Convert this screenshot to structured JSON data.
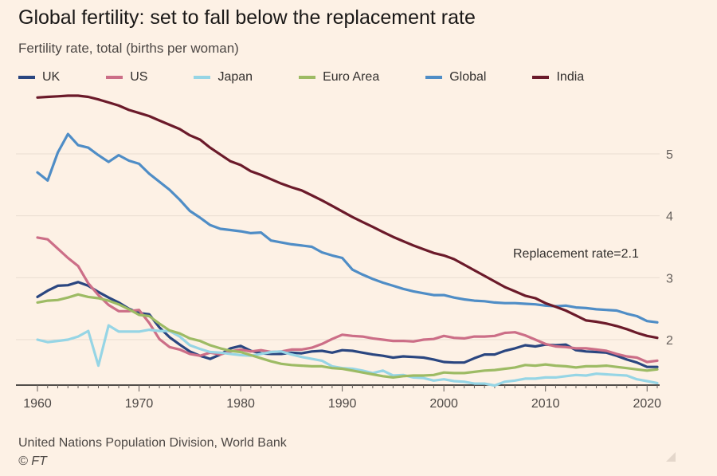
{
  "header": {
    "title": "Global fertility: set to fall below the replacement rate",
    "subtitle": "Fertility rate, total (births per woman)"
  },
  "footer": {
    "source": "United Nations Population Division, World Bank",
    "copyright": "© FT"
  },
  "chart_data": {
    "type": "line",
    "title": "Global fertility: set to fall below the replacement rate",
    "ylabel": "Fertility rate, total (births per woman)",
    "xlabel": "",
    "xlim": [
      1960,
      2021
    ],
    "ylim": [
      1.25,
      5.9
    ],
    "x_ticks": [
      1960,
      1970,
      1980,
      1990,
      2000,
      2010,
      2020
    ],
    "y_ticks": [
      2,
      3,
      4,
      5
    ],
    "grid": "horizontal",
    "y_axis_position": "right",
    "legend_position": "top",
    "annotation": {
      "text": "Replacement rate=2.1",
      "x": 2018,
      "y": 3.4
    },
    "x": [
      1960,
      1961,
      1962,
      1963,
      1964,
      1965,
      1966,
      1967,
      1968,
      1969,
      1970,
      1971,
      1972,
      1973,
      1974,
      1975,
      1976,
      1977,
      1978,
      1979,
      1980,
      1981,
      1982,
      1983,
      1984,
      1985,
      1986,
      1987,
      1988,
      1989,
      1990,
      1991,
      1992,
      1993,
      1994,
      1995,
      1996,
      1997,
      1998,
      1999,
      2000,
      2001,
      2002,
      2003,
      2004,
      2005,
      2006,
      2007,
      2008,
      2009,
      2010,
      2011,
      2012,
      2013,
      2014,
      2015,
      2016,
      2017,
      2018,
      2019,
      2020,
      2021
    ],
    "series": [
      {
        "name": "UK",
        "color": "#2a4680",
        "values": [
          2.69,
          2.79,
          2.87,
          2.88,
          2.93,
          2.87,
          2.77,
          2.68,
          2.6,
          2.5,
          2.43,
          2.41,
          2.2,
          2.04,
          1.92,
          1.81,
          1.74,
          1.69,
          1.76,
          1.86,
          1.9,
          1.82,
          1.78,
          1.77,
          1.77,
          1.79,
          1.78,
          1.81,
          1.82,
          1.79,
          1.83,
          1.82,
          1.79,
          1.76,
          1.74,
          1.71,
          1.73,
          1.72,
          1.71,
          1.68,
          1.64,
          1.63,
          1.63,
          1.7,
          1.76,
          1.76,
          1.82,
          1.86,
          1.91,
          1.89,
          1.92,
          1.91,
          1.92,
          1.83,
          1.81,
          1.8,
          1.79,
          1.74,
          1.68,
          1.63,
          1.56,
          1.56
        ]
      },
      {
        "name": "US",
        "color": "#cc6e87",
        "values": [
          3.65,
          3.62,
          3.47,
          3.32,
          3.19,
          2.91,
          2.72,
          2.56,
          2.46,
          2.46,
          2.48,
          2.27,
          2.01,
          1.88,
          1.84,
          1.77,
          1.74,
          1.79,
          1.76,
          1.81,
          1.84,
          1.81,
          1.83,
          1.8,
          1.81,
          1.84,
          1.84,
          1.87,
          1.93,
          2.01,
          2.08,
          2.06,
          2.05,
          2.02,
          2.0,
          1.98,
          1.98,
          1.97,
          2.0,
          2.01,
          2.06,
          2.03,
          2.02,
          2.05,
          2.05,
          2.06,
          2.11,
          2.12,
          2.07,
          2.0,
          1.93,
          1.89,
          1.88,
          1.86,
          1.86,
          1.84,
          1.82,
          1.77,
          1.73,
          1.71,
          1.64,
          1.66
        ]
      },
      {
        "name": "Japan",
        "color": "#96d5e5",
        "values": [
          2.0,
          1.96,
          1.98,
          2.0,
          2.05,
          2.14,
          1.58,
          2.23,
          2.13,
          2.13,
          2.13,
          2.16,
          2.14,
          2.14,
          2.05,
          1.91,
          1.85,
          1.8,
          1.79,
          1.77,
          1.75,
          1.74,
          1.77,
          1.8,
          1.81,
          1.76,
          1.72,
          1.69,
          1.66,
          1.57,
          1.54,
          1.53,
          1.5,
          1.46,
          1.5,
          1.42,
          1.43,
          1.39,
          1.38,
          1.34,
          1.36,
          1.33,
          1.32,
          1.29,
          1.29,
          1.26,
          1.32,
          1.34,
          1.37,
          1.37,
          1.39,
          1.39,
          1.41,
          1.43,
          1.42,
          1.45,
          1.44,
          1.43,
          1.42,
          1.36,
          1.33,
          1.3
        ]
      },
      {
        "name": "Euro Area",
        "color": "#9dbb64",
        "values": [
          2.6,
          2.63,
          2.64,
          2.68,
          2.73,
          2.69,
          2.67,
          2.63,
          2.57,
          2.49,
          2.4,
          2.38,
          2.26,
          2.15,
          2.1,
          2.02,
          1.98,
          1.91,
          1.86,
          1.82,
          1.8,
          1.75,
          1.7,
          1.65,
          1.61,
          1.59,
          1.58,
          1.57,
          1.57,
          1.54,
          1.53,
          1.5,
          1.47,
          1.44,
          1.41,
          1.39,
          1.41,
          1.42,
          1.42,
          1.43,
          1.47,
          1.46,
          1.46,
          1.48,
          1.5,
          1.51,
          1.53,
          1.55,
          1.59,
          1.58,
          1.6,
          1.58,
          1.57,
          1.55,
          1.57,
          1.57,
          1.58,
          1.56,
          1.54,
          1.52,
          1.5,
          1.52
        ]
      },
      {
        "name": "Global",
        "color": "#4f8dc6",
        "values": [
          4.7,
          4.57,
          5.02,
          5.32,
          5.14,
          5.1,
          4.98,
          4.87,
          4.98,
          4.89,
          4.84,
          4.68,
          4.55,
          4.42,
          4.26,
          4.08,
          3.97,
          3.85,
          3.79,
          3.77,
          3.75,
          3.72,
          3.73,
          3.6,
          3.57,
          3.54,
          3.52,
          3.5,
          3.41,
          3.36,
          3.32,
          3.13,
          3.05,
          2.98,
          2.92,
          2.87,
          2.82,
          2.78,
          2.75,
          2.72,
          2.72,
          2.68,
          2.65,
          2.63,
          2.62,
          2.6,
          2.59,
          2.59,
          2.58,
          2.57,
          2.55,
          2.54,
          2.55,
          2.52,
          2.51,
          2.49,
          2.48,
          2.47,
          2.42,
          2.38,
          2.3,
          2.28
        ]
      },
      {
        "name": "India",
        "color": "#6b1a2a",
        "values": [
          5.91,
          5.92,
          5.93,
          5.94,
          5.94,
          5.92,
          5.88,
          5.83,
          5.78,
          5.71,
          5.66,
          5.61,
          5.54,
          5.47,
          5.4,
          5.3,
          5.23,
          5.1,
          4.99,
          4.88,
          4.82,
          4.72,
          4.66,
          4.59,
          4.52,
          4.46,
          4.41,
          4.33,
          4.25,
          4.16,
          4.07,
          3.98,
          3.9,
          3.82,
          3.74,
          3.66,
          3.59,
          3.52,
          3.46,
          3.4,
          3.36,
          3.3,
          3.21,
          3.12,
          3.03,
          2.94,
          2.85,
          2.78,
          2.71,
          2.67,
          2.59,
          2.53,
          2.47,
          2.39,
          2.31,
          2.29,
          2.26,
          2.22,
          2.17,
          2.11,
          2.06,
          2.03
        ]
      }
    ]
  }
}
